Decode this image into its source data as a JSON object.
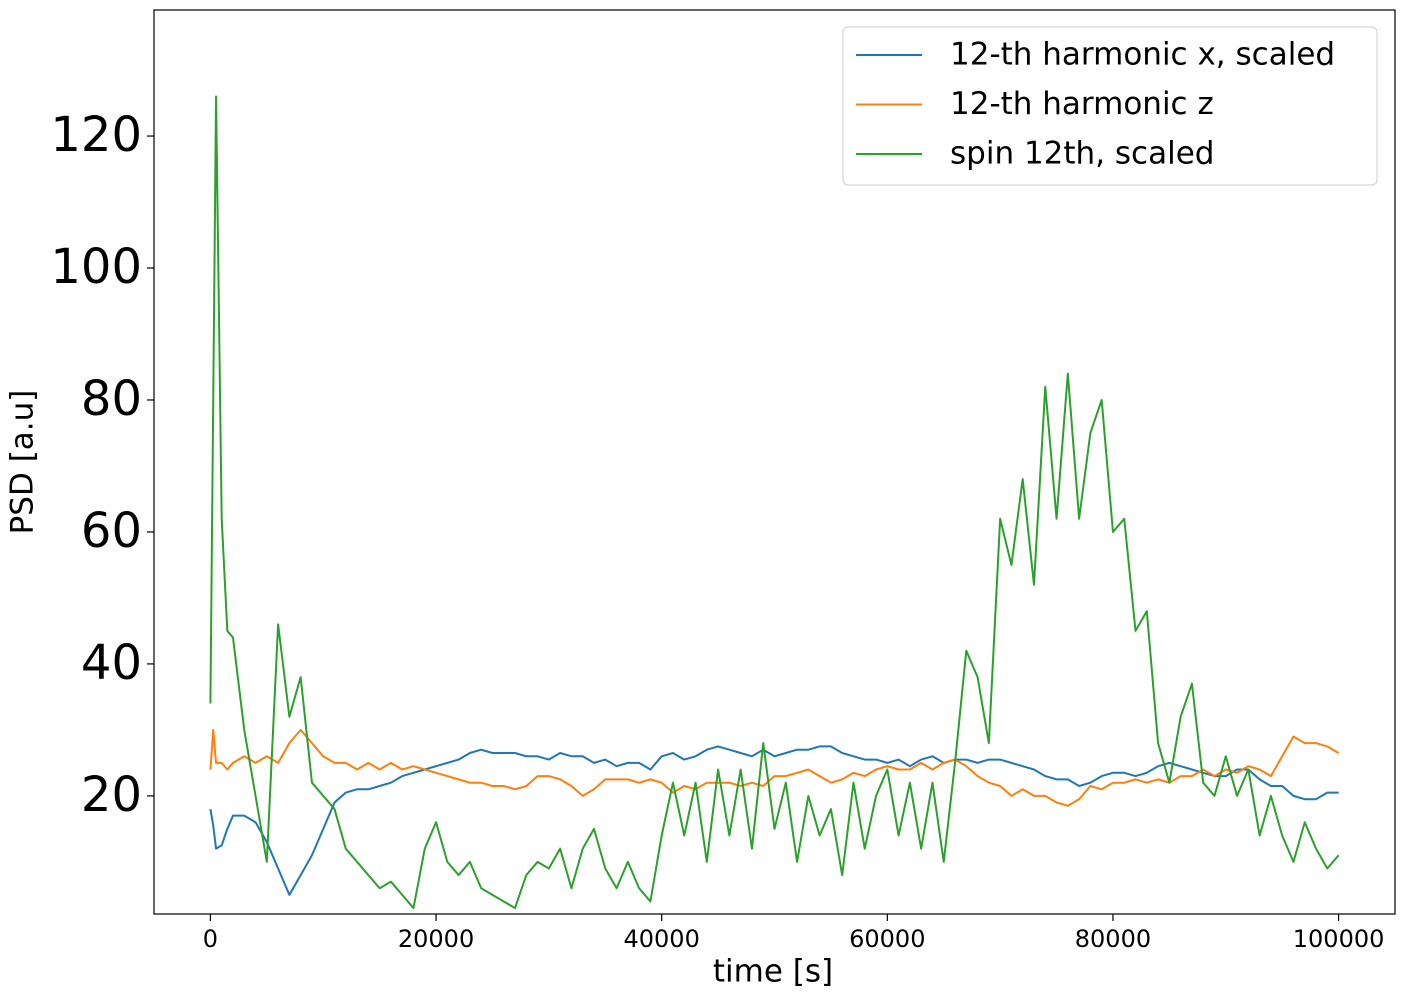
{
  "chart_data": {
    "type": "line",
    "xlabel": "time [s]",
    "ylabel": "PSD [a.u]",
    "x": [
      0,
      250,
      500,
      1000,
      1500,
      2000,
      3000,
      4000,
      5000,
      6000,
      7000,
      8000,
      9000,
      10000,
      11000,
      12000,
      13000,
      14000,
      15000,
      16000,
      17000,
      18000,
      19000,
      20000,
      21000,
      22000,
      23000,
      24000,
      25000,
      26000,
      27000,
      28000,
      29000,
      30000,
      31000,
      32000,
      33000,
      34000,
      35000,
      36000,
      37000,
      38000,
      39000,
      40000,
      41000,
      42000,
      43000,
      44000,
      45000,
      46000,
      47000,
      48000,
      49000,
      50000,
      51000,
      52000,
      53000,
      54000,
      55000,
      56000,
      57000,
      58000,
      59000,
      60000,
      61000,
      62000,
      63000,
      64000,
      65000,
      66000,
      67000,
      68000,
      69000,
      70000,
      71000,
      72000,
      73000,
      74000,
      75000,
      76000,
      77000,
      78000,
      79000,
      80000,
      81000,
      82000,
      83000,
      84000,
      85000,
      86000,
      87000,
      88000,
      89000,
      90000,
      91000,
      92000,
      93000,
      94000,
      95000,
      96000,
      97000,
      98000,
      99000,
      100000
    ],
    "series": [
      {
        "name": "12-th harmonic x, scaled",
        "color": "#1f77b4",
        "values": [
          18,
          15.5,
          12,
          12.5,
          15,
          17,
          17,
          16,
          13,
          9,
          5,
          8,
          11,
          15,
          19,
          20.5,
          21,
          21,
          21.5,
          22,
          23,
          23.5,
          24,
          24.5,
          25,
          25.5,
          26.5,
          27,
          26.5,
          26.5,
          26.5,
          26,
          26,
          25.5,
          26.5,
          26,
          26,
          25,
          25.5,
          24.5,
          25,
          25,
          24,
          26,
          26.5,
          25.5,
          26,
          27,
          27.5,
          27,
          26.5,
          26,
          27,
          26,
          26.5,
          27,
          27,
          27.5,
          27.5,
          26.5,
          26,
          25.5,
          25.5,
          25,
          25.5,
          24.5,
          25.5,
          26,
          25,
          25.5,
          25.5,
          25,
          25.5,
          25.5,
          25,
          24.5,
          24,
          23,
          22.5,
          22.5,
          21.5,
          22,
          23,
          23.5,
          23.5,
          23,
          23.5,
          24.5,
          25,
          24.5,
          24,
          23.5,
          23,
          23,
          24,
          24,
          22.5,
          21.5,
          21.5,
          20,
          19.5,
          19.5,
          20.5,
          20.5
        ]
      },
      {
        "name": "12-th harmonic z",
        "color": "#ff7f0e",
        "values": [
          24,
          30,
          25,
          25,
          24,
          25,
          26,
          25,
          26,
          25,
          28,
          30,
          28,
          26,
          25,
          25,
          24,
          25,
          24,
          25,
          24,
          24.5,
          24,
          23.5,
          23,
          22.5,
          22,
          22,
          21.5,
          21.5,
          21,
          21.5,
          23,
          23,
          22.5,
          21.5,
          20,
          21,
          22.5,
          22.5,
          22.5,
          22,
          22.5,
          22,
          20.5,
          21.5,
          21,
          22,
          22,
          22,
          21.5,
          22,
          21.5,
          23,
          23,
          23.5,
          24,
          23,
          22,
          22.5,
          23.5,
          23,
          24,
          24.5,
          24,
          24,
          25,
          24,
          25,
          25.5,
          24.5,
          23,
          22,
          21.5,
          20,
          21,
          20,
          20,
          19,
          18.5,
          19.5,
          21.5,
          21,
          22,
          22,
          22.5,
          22,
          22.5,
          22,
          23,
          23,
          24,
          23,
          24,
          23.5,
          24.5,
          24,
          23,
          26,
          29,
          28,
          28,
          27.5,
          26.5
        ]
      },
      {
        "name": "spin 12th, scaled",
        "color": "#2ca02c",
        "values": [
          34,
          80,
          126,
          62,
          45,
          44,
          30,
          20,
          10,
          46,
          32,
          38,
          22,
          20,
          18,
          12,
          10,
          8,
          6,
          7,
          5,
          3,
          12,
          16,
          10,
          8,
          10,
          6,
          5,
          4,
          3,
          8,
          10,
          9,
          12,
          6,
          12,
          15,
          9,
          6,
          10,
          6,
          4,
          14,
          22,
          14,
          22,
          10,
          24,
          14,
          24,
          12,
          28,
          15,
          22,
          10,
          20,
          14,
          18,
          8,
          22,
          12,
          20,
          24,
          14,
          22,
          12,
          22,
          10,
          25,
          42,
          38,
          28,
          62,
          55,
          68,
          52,
          82,
          62,
          84,
          62,
          75,
          80,
          60,
          62,
          45,
          48,
          28,
          22,
          32,
          37,
          22,
          20,
          26,
          20,
          24,
          14,
          20,
          14,
          10,
          16,
          12,
          9,
          11
        ]
      }
    ],
    "xlim": [
      -5000,
      105000
    ],
    "ylim": [
      2.1,
      139.1
    ],
    "xticks": [
      0,
      20000,
      40000,
      60000,
      80000,
      100000
    ],
    "yticks": [
      20,
      40,
      60,
      80,
      100,
      120
    ],
    "grid": false,
    "legend": "upper right"
  }
}
